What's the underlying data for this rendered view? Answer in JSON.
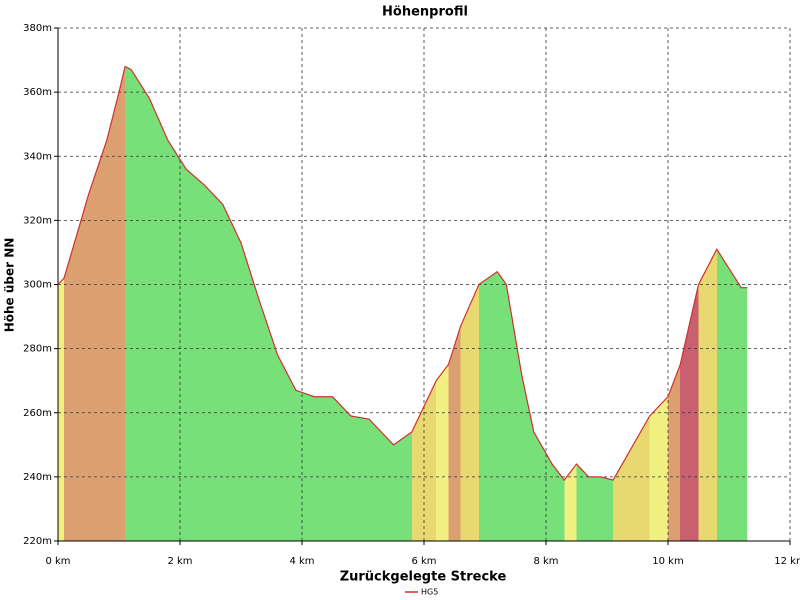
{
  "chart_data": {
    "type": "area",
    "title": "Höhenprofil",
    "x_label": "Zurückgelegte Strecke",
    "y_label": "Höhe über NN",
    "x": [
      0,
      0.1,
      0.3,
      0.5,
      0.8,
      1.0,
      1.1,
      1.2,
      1.5,
      1.8,
      2.1,
      2.4,
      2.7,
      3.0,
      3.3,
      3.6,
      3.9,
      4.2,
      4.5,
      4.8,
      5.1,
      5.3,
      5.5,
      5.8,
      6.0,
      6.2,
      6.4,
      6.6,
      6.9,
      7.2,
      7.35,
      7.6,
      7.8,
      8.1,
      8.3,
      8.5,
      8.7,
      8.9,
      9.1,
      9.4,
      9.7,
      10.0,
      10.2,
      10.5,
      10.8,
      11.0,
      11.2,
      11.3
    ],
    "series": [
      {
        "name": "HG5",
        "color": "#d03030",
        "values": [
          300,
          302,
          315,
          328,
          345,
          360,
          368,
          367,
          358,
          345,
          336,
          331,
          325,
          313,
          295,
          278,
          267,
          265,
          265,
          259,
          258,
          254,
          250,
          254,
          262,
          270,
          275,
          287,
          300,
          304,
          300,
          272,
          254,
          244,
          239,
          244,
          240,
          240,
          239,
          249,
          259,
          265,
          275,
          300,
          311,
          305,
          299,
          299
        ]
      }
    ],
    "xlim": [
      0,
      12
    ],
    "xticks": [
      {
        "value": 0,
        "label": "0 km"
      },
      {
        "value": 2,
        "label": "2 km"
      },
      {
        "value": 4,
        "label": "4 km"
      },
      {
        "value": 6,
        "label": "6 km"
      },
      {
        "value": 8,
        "label": "8 km"
      },
      {
        "value": 10,
        "label": "10 km"
      },
      {
        "value": 12,
        "label": "12 km"
      }
    ],
    "ylim": [
      220,
      380
    ],
    "yticks": [
      {
        "value": 220,
        "label": "220m"
      },
      {
        "value": 240,
        "label": "240m"
      },
      {
        "value": 260,
        "label": "260m"
      },
      {
        "value": 280,
        "label": "280m"
      },
      {
        "value": 300,
        "label": "300m"
      },
      {
        "value": 320,
        "label": "320m"
      },
      {
        "value": 340,
        "label": "340m"
      },
      {
        "value": 360,
        "label": "360m"
      },
      {
        "value": 380,
        "label": "380m"
      }
    ],
    "grid": true
  }
}
